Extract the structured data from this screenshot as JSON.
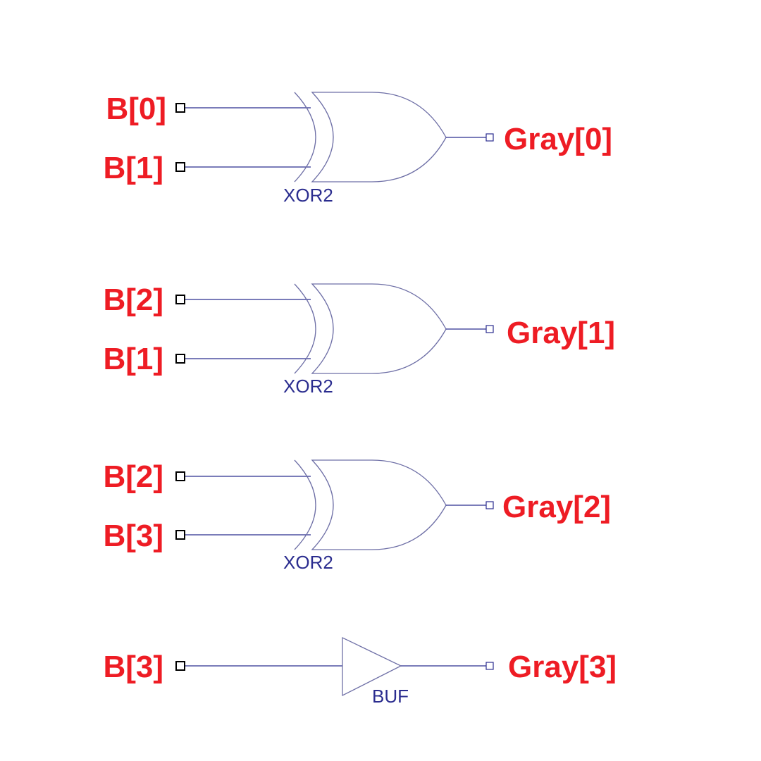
{
  "colors": {
    "label": "#ee1c24",
    "wire": "#2b2d8f",
    "gate_outline": "#6e6fa6",
    "background": "#ffffff"
  },
  "gates": [
    {
      "type": "XOR2",
      "label": "XOR2",
      "inputs": [
        "B[0]",
        "B[1]"
      ],
      "output": "Gray[0]"
    },
    {
      "type": "XOR2",
      "label": "XOR2",
      "inputs": [
        "B[2]",
        "B[1]"
      ],
      "output": "Gray[1]"
    },
    {
      "type": "XOR2",
      "label": "XOR2",
      "inputs": [
        "B[2]",
        "B[3]"
      ],
      "output": "Gray[2]"
    },
    {
      "type": "BUF",
      "label": "BUF",
      "inputs": [
        "B[3]"
      ],
      "output": "Gray[3]"
    }
  ]
}
